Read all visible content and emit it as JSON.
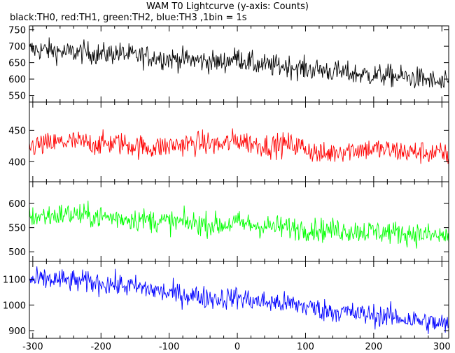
{
  "chart_data": {
    "type": "line",
    "title": "WAM T0 Lightcurve (y-axis: Counts)",
    "subtitle": "black:TH0, red:TH1, green:TH2, blue:TH3 ,1bin = 1s",
    "xlabel": "",
    "ylabel": "",
    "xlim": [
      -305,
      310
    ],
    "x_ticks": [
      -300,
      -200,
      -100,
      0,
      100,
      200,
      300
    ],
    "grid": false,
    "panels": [
      {
        "name": "TH0",
        "color": "#000000",
        "ylim": [
          530,
          762
        ],
        "y_ticks": [
          550,
          600,
          650,
          700,
          750
        ],
        "x": [
          -300,
          -275,
          -250,
          -225,
          -200,
          -175,
          -150,
          -125,
          -100,
          -75,
          -50,
          -25,
          0,
          25,
          50,
          75,
          100,
          125,
          150,
          175,
          200,
          225,
          250,
          275,
          300
        ],
        "values": [
          690,
          688,
          680,
          682,
          675,
          680,
          670,
          668,
          662,
          660,
          655,
          650,
          665,
          645,
          640,
          640,
          630,
          628,
          620,
          615,
          612,
          610,
          605,
          600,
          585
        ]
      },
      {
        "name": "TH1",
        "color": "#ff0000",
        "ylim": [
          368,
          495
        ],
        "y_ticks": [
          400,
          450
        ],
        "x": [
          -300,
          -275,
          -250,
          -225,
          -200,
          -175,
          -150,
          -125,
          -100,
          -75,
          -50,
          -25,
          0,
          25,
          50,
          75,
          100,
          125,
          150,
          175,
          200,
          225,
          250,
          275,
          300
        ],
        "values": [
          425,
          428,
          432,
          430,
          428,
          430,
          425,
          422,
          425,
          428,
          430,
          426,
          435,
          428,
          425,
          428,
          422,
          410,
          418,
          420,
          420,
          418,
          415,
          415,
          412
        ]
      },
      {
        "name": "TH2",
        "color": "#00ff00",
        "ylim": [
          480,
          645
        ],
        "y_ticks": [
          500,
          550,
          600
        ],
        "x": [
          -300,
          -275,
          -250,
          -225,
          -200,
          -175,
          -150,
          -125,
          -100,
          -75,
          -50,
          -25,
          0,
          25,
          50,
          75,
          100,
          125,
          150,
          175,
          200,
          225,
          250,
          275,
          300
        ],
        "values": [
          572,
          575,
          578,
          575,
          572,
          570,
          568,
          565,
          562,
          560,
          558,
          555,
          560,
          555,
          552,
          550,
          548,
          545,
          545,
          543,
          542,
          540,
          538,
          535,
          532
        ]
      },
      {
        "name": "TH3",
        "color": "#0000ff",
        "ylim": [
          870,
          1170
        ],
        "y_ticks": [
          900,
          1000,
          1100
        ],
        "x": [
          -300,
          -275,
          -250,
          -225,
          -200,
          -175,
          -150,
          -125,
          -100,
          -75,
          -50,
          -25,
          0,
          25,
          50,
          75,
          100,
          125,
          150,
          175,
          200,
          225,
          250,
          275,
          300
        ],
        "values": [
          1095,
          1100,
          1095,
          1090,
          1085,
          1078,
          1070,
          1060,
          1045,
          1040,
          1030,
          1025,
          1030,
          1015,
          1010,
          1005,
          995,
          980,
          975,
          965,
          960,
          955,
          945,
          935,
          925
        ]
      }
    ]
  }
}
